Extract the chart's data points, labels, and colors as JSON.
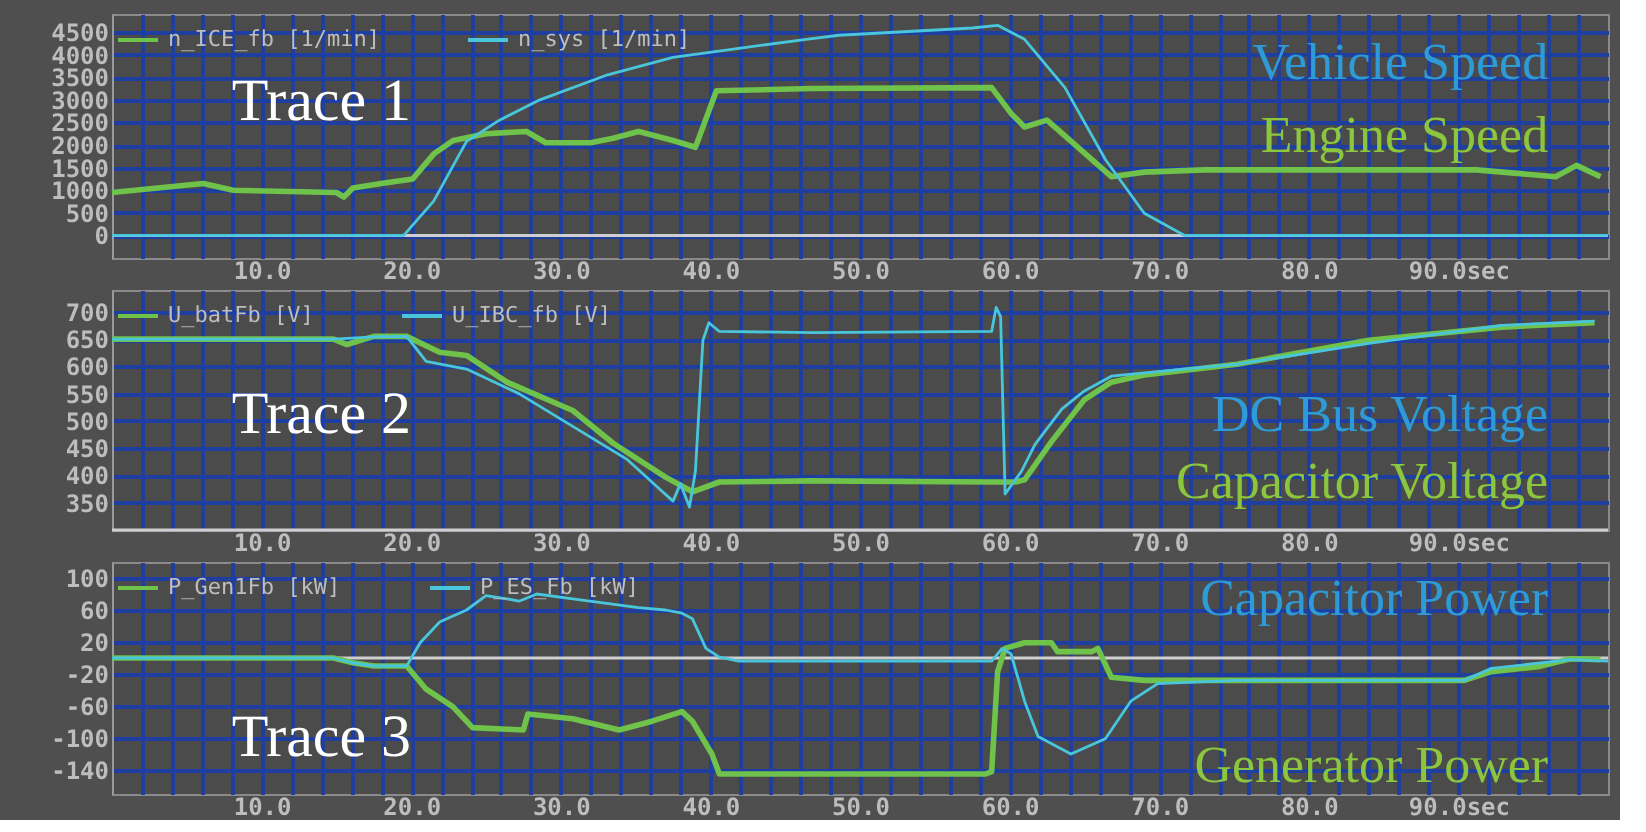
{
  "chart_data": [
    {
      "type": "line",
      "annotations": [
        "Trace 1",
        "Vehicle Speed",
        "Engine Speed"
      ],
      "legend": "top left",
      "grid": true,
      "line_style": "solid",
      "marker": "none",
      "xlim": [
        0,
        100
      ],
      "xticks": [
        {
          "value": 2,
          "label": null
        },
        {
          "value": 4,
          "label": null
        },
        {
          "value": 6,
          "label": null
        },
        {
          "value": 8,
          "label": null
        },
        {
          "value": 10,
          "label": "10.0"
        },
        {
          "value": 12,
          "label": null
        },
        {
          "value": 14,
          "label": null
        },
        {
          "value": 16,
          "label": null
        },
        {
          "value": 18,
          "label": null
        },
        {
          "value": 20,
          "label": "20.0"
        },
        {
          "value": 22,
          "label": null
        },
        {
          "value": 24,
          "label": null
        },
        {
          "value": 26,
          "label": null
        },
        {
          "value": 28,
          "label": null
        },
        {
          "value": 30,
          "label": "30.0"
        },
        {
          "value": 32,
          "label": null
        },
        {
          "value": 34,
          "label": null
        },
        {
          "value": 36,
          "label": null
        },
        {
          "value": 38,
          "label": null
        },
        {
          "value": 40,
          "label": "40.0"
        },
        {
          "value": 42,
          "label": null
        },
        {
          "value": 44,
          "label": null
        },
        {
          "value": 46,
          "label": null
        },
        {
          "value": 48,
          "label": null
        },
        {
          "value": 50,
          "label": "50.0"
        },
        {
          "value": 52,
          "label": null
        },
        {
          "value": 54,
          "label": null
        },
        {
          "value": 56,
          "label": null
        },
        {
          "value": 58,
          "label": null
        },
        {
          "value": 60,
          "label": "60.0"
        },
        {
          "value": 62,
          "label": null
        },
        {
          "value": 64,
          "label": null
        },
        {
          "value": 66,
          "label": null
        },
        {
          "value": 68,
          "label": null
        },
        {
          "value": 70,
          "label": "70.0"
        },
        {
          "value": 72,
          "label": null
        },
        {
          "value": 74,
          "label": null
        },
        {
          "value": 76,
          "label": null
        },
        {
          "value": 78,
          "label": null
        },
        {
          "value": 80,
          "label": "80.0"
        },
        {
          "value": 82,
          "label": null
        },
        {
          "value": 84,
          "label": null
        },
        {
          "value": 86,
          "label": null
        },
        {
          "value": 88,
          "label": null
        },
        {
          "value": 90,
          "label": "90.0sec"
        },
        {
          "value": 92,
          "label": null
        },
        {
          "value": 94,
          "label": null
        },
        {
          "value": 96,
          "label": null
        },
        {
          "value": 98,
          "label": null
        }
      ],
      "ylim": [
        -500,
        4900
      ],
      "yticks": [
        0,
        500,
        1000,
        1500,
        2000,
        2500,
        3000,
        3500,
        4000,
        4500
      ],
      "series": [
        {
          "name": "n_ICE_fb [1/min]",
          "color": "#6fc24a",
          "x": [
            0,
            6.1,
            8.1,
            15,
            15.5,
            16.1,
            18,
            20.1,
            21.5,
            22.8,
            25,
            27.7,
            29,
            32,
            33.5,
            35.2,
            37.5,
            39,
            40.4,
            46.8,
            58.8,
            60.1,
            61,
            62.5,
            66.8,
            69,
            73,
            91.2,
            96.5,
            97.9,
            99.5
          ],
          "values": [
            950,
            1150,
            1000,
            950,
            850,
            1050,
            1150,
            1250,
            1800,
            2100,
            2250,
            2300,
            2050,
            2050,
            2150,
            2300,
            2100,
            1950,
            3200,
            3250,
            3270,
            2700,
            2400,
            2550,
            1300,
            1400,
            1450,
            1450,
            1300,
            1550,
            1300
          ]
        },
        {
          "name": "n_sys [1/min]",
          "color": "#49c6dc",
          "x": [
            0,
            19.5,
            21.5,
            23.7,
            25.9,
            28.6,
            33,
            37.5,
            41.9,
            46.4,
            48.6,
            57.5,
            59.2,
            61,
            63.7,
            66.4,
            69,
            71.7,
            100
          ],
          "values": [
            0,
            0,
            760,
            2080,
            2550,
            3000,
            3540,
            3940,
            4140,
            4340,
            4430,
            4590,
            4650,
            4340,
            3270,
            1680,
            490,
            0,
            0
          ]
        }
      ]
    },
    {
      "type": "line",
      "annotations": [
        "Trace 2",
        "DC Bus Voltage",
        "Capacitor Voltage"
      ],
      "legend": "top left",
      "grid": true,
      "line_style": "solid",
      "marker": "none",
      "xlim": [
        0,
        100
      ],
      "xticks": [
        {
          "value": 2,
          "label": null
        },
        {
          "value": 4,
          "label": null
        },
        {
          "value": 6,
          "label": null
        },
        {
          "value": 8,
          "label": null
        },
        {
          "value": 10,
          "label": "10.0"
        },
        {
          "value": 12,
          "label": null
        },
        {
          "value": 14,
          "label": null
        },
        {
          "value": 16,
          "label": null
        },
        {
          "value": 18,
          "label": null
        },
        {
          "value": 20,
          "label": "20.0"
        },
        {
          "value": 22,
          "label": null
        },
        {
          "value": 24,
          "label": null
        },
        {
          "value": 26,
          "label": null
        },
        {
          "value": 28,
          "label": null
        },
        {
          "value": 30,
          "label": "30.0"
        },
        {
          "value": 32,
          "label": null
        },
        {
          "value": 34,
          "label": null
        },
        {
          "value": 36,
          "label": null
        },
        {
          "value": 38,
          "label": null
        },
        {
          "value": 40,
          "label": "40.0"
        },
        {
          "value": 42,
          "label": null
        },
        {
          "value": 44,
          "label": null
        },
        {
          "value": 46,
          "label": null
        },
        {
          "value": 48,
          "label": null
        },
        {
          "value": 50,
          "label": "50.0"
        },
        {
          "value": 52,
          "label": null
        },
        {
          "value": 54,
          "label": null
        },
        {
          "value": 56,
          "label": null
        },
        {
          "value": 58,
          "label": null
        },
        {
          "value": 60,
          "label": "60.0"
        },
        {
          "value": 62,
          "label": null
        },
        {
          "value": 64,
          "label": null
        },
        {
          "value": 66,
          "label": null
        },
        {
          "value": 68,
          "label": null
        },
        {
          "value": 70,
          "label": "70.0"
        },
        {
          "value": 72,
          "label": null
        },
        {
          "value": 74,
          "label": null
        },
        {
          "value": 76,
          "label": null
        },
        {
          "value": 78,
          "label": null
        },
        {
          "value": 80,
          "label": "80.0"
        },
        {
          "value": 82,
          "label": null
        },
        {
          "value": 84,
          "label": null
        },
        {
          "value": 86,
          "label": null
        },
        {
          "value": 88,
          "label": null
        },
        {
          "value": 90,
          "label": "90.0sec"
        },
        {
          "value": 92,
          "label": null
        },
        {
          "value": 94,
          "label": null
        },
        {
          "value": 96,
          "label": null
        },
        {
          "value": 98,
          "label": null
        }
      ],
      "ylim": [
        300,
        740
      ],
      "yticks": [
        350,
        400,
        450,
        500,
        550,
        600,
        650,
        700
      ],
      "series": [
        {
          "name": "U_batFb [V]",
          "color": "#6fc24a",
          "x": [
            0,
            14.8,
            15.7,
            17.5,
            19.7,
            21.9,
            23.7,
            26.4,
            30.8,
            33.5,
            37,
            38.8,
            40.6,
            46.8,
            58.8,
            60.4,
            61,
            62.8,
            65,
            66.8,
            69,
            75.2,
            84,
            92.9,
            99.1
          ],
          "values": [
            650,
            650,
            640,
            655,
            655,
            626,
            620,
            571,
            519,
            459,
            397,
            370,
            388,
            390,
            388,
            388,
            392,
            462,
            539,
            571,
            584,
            604,
            648,
            672,
            680
          ]
        },
        {
          "name": "U_IBC_fb [V]",
          "color": "#49c6dc",
          "x": [
            0,
            14.8,
            17.5,
            19.7,
            21,
            23.7,
            27.2,
            30.8,
            34.4,
            36.6,
            37.5,
            38,
            38.6,
            39,
            39.5,
            39.9,
            40.6,
            46.8,
            58.8,
            59.1,
            59.4,
            59.7,
            60.8,
            61.7,
            63.5,
            65,
            66.8,
            69,
            75.2,
            84,
            92.9,
            99.1
          ],
          "values": [
            650,
            650,
            654,
            655,
            609,
            595,
            550,
            490,
            430,
            375,
            353,
            385,
            342,
            408,
            648,
            680,
            664,
            662,
            664,
            708,
            691,
            366,
            408,
            457,
            522,
            555,
            582,
            588,
            604,
            642,
            675,
            683
          ]
        }
      ]
    },
    {
      "type": "line",
      "annotations": [
        "Trace 3",
        "Capacitor Power",
        "Generator Power"
      ],
      "legend": "top left",
      "grid": true,
      "line_style": "solid",
      "marker": "none",
      "xlim": [
        0,
        100
      ],
      "xticks": [
        {
          "value": 2,
          "label": null
        },
        {
          "value": 4,
          "label": null
        },
        {
          "value": 6,
          "label": null
        },
        {
          "value": 8,
          "label": null
        },
        {
          "value": 10,
          "label": "10.0"
        },
        {
          "value": 12,
          "label": null
        },
        {
          "value": 14,
          "label": null
        },
        {
          "value": 16,
          "label": null
        },
        {
          "value": 18,
          "label": null
        },
        {
          "value": 20,
          "label": "20.0"
        },
        {
          "value": 22,
          "label": null
        },
        {
          "value": 24,
          "label": null
        },
        {
          "value": 26,
          "label": null
        },
        {
          "value": 28,
          "label": null
        },
        {
          "value": 30,
          "label": "30.0"
        },
        {
          "value": 32,
          "label": null
        },
        {
          "value": 34,
          "label": null
        },
        {
          "value": 36,
          "label": null
        },
        {
          "value": 38,
          "label": null
        },
        {
          "value": 40,
          "label": "40.0"
        },
        {
          "value": 42,
          "label": null
        },
        {
          "value": 44,
          "label": null
        },
        {
          "value": 46,
          "label": null
        },
        {
          "value": 48,
          "label": null
        },
        {
          "value": 50,
          "label": "50.0"
        },
        {
          "value": 52,
          "label": null
        },
        {
          "value": 54,
          "label": null
        },
        {
          "value": 56,
          "label": null
        },
        {
          "value": 58,
          "label": null
        },
        {
          "value": 60,
          "label": "60.0"
        },
        {
          "value": 62,
          "label": null
        },
        {
          "value": 64,
          "label": null
        },
        {
          "value": 66,
          "label": null
        },
        {
          "value": 68,
          "label": null
        },
        {
          "value": 70,
          "label": "70.0"
        },
        {
          "value": 72,
          "label": null
        },
        {
          "value": 74,
          "label": null
        },
        {
          "value": 76,
          "label": null
        },
        {
          "value": 78,
          "label": null
        },
        {
          "value": 80,
          "label": "80.0"
        },
        {
          "value": 82,
          "label": null
        },
        {
          "value": 84,
          "label": null
        },
        {
          "value": 86,
          "label": null
        },
        {
          "value": 88,
          "label": null
        },
        {
          "value": 90,
          "label": "90.0sec"
        },
        {
          "value": 92,
          "label": null
        },
        {
          "value": 94,
          "label": null
        },
        {
          "value": 96,
          "label": null
        },
        {
          "value": 98,
          "label": null
        }
      ],
      "ylim": [
        -170,
        120
      ],
      "yticks": [
        -140,
        -100,
        -60,
        -20,
        20,
        60,
        100
      ],
      "series": [
        {
          "name": "P_Gen1Fb [kW]",
          "color": "#6fc24a",
          "x": [
            0,
            14.8,
            16.1,
            17.5,
            19.7,
            21,
            22.8,
            24.1,
            26.4,
            27.5,
            27.8,
            30.8,
            33.9,
            36.1,
            38.1,
            38.8,
            40.1,
            40.6,
            46.8,
            58.4,
            58.8,
            59.2,
            59.7,
            61,
            62.8,
            63.2,
            65.5,
            65.9,
            66.8,
            69,
            75.2,
            90.4,
            92.2,
            95.3,
            97.5,
            99.5
          ],
          "values": [
            0,
            0,
            -6,
            -10,
            -10,
            -39,
            -61,
            -87,
            -89,
            -90,
            -70,
            -76,
            -90,
            -79,
            -67,
            -79,
            -120,
            -145,
            -145,
            -145,
            -142,
            -17,
            12,
            19,
            19,
            8,
            8,
            12,
            -24,
            -28,
            -28,
            -28,
            -17,
            -11,
            -1,
            -2
          ]
        },
        {
          "name": "P_ES_Fb [kW]",
          "color": "#49c6dc",
          "x": [
            0,
            14.8,
            16.1,
            17.5,
            19.7,
            20.6,
            21.9,
            23.7,
            25,
            26.4,
            27.2,
            28.4,
            30.8,
            35.2,
            37,
            38.1,
            38.8,
            39.7,
            40.6,
            41.9,
            58.8,
            59.5,
            60.1,
            61,
            61.9,
            64.1,
            66.4,
            68.1,
            69.9,
            75.2,
            90.4,
            92.2,
            97.5,
            100
          ],
          "values": [
            0,
            0,
            -6,
            -10,
            -10,
            19,
            45,
            60,
            78,
            74,
            71,
            80,
            74,
            63,
            60,
            56,
            49,
            12,
            1,
            -4,
            -4,
            12,
            5,
            -54,
            -98,
            -120,
            -101,
            -54,
            -32,
            -28,
            -28,
            -13,
            -2,
            -4
          ]
        }
      ]
    }
  ]
}
